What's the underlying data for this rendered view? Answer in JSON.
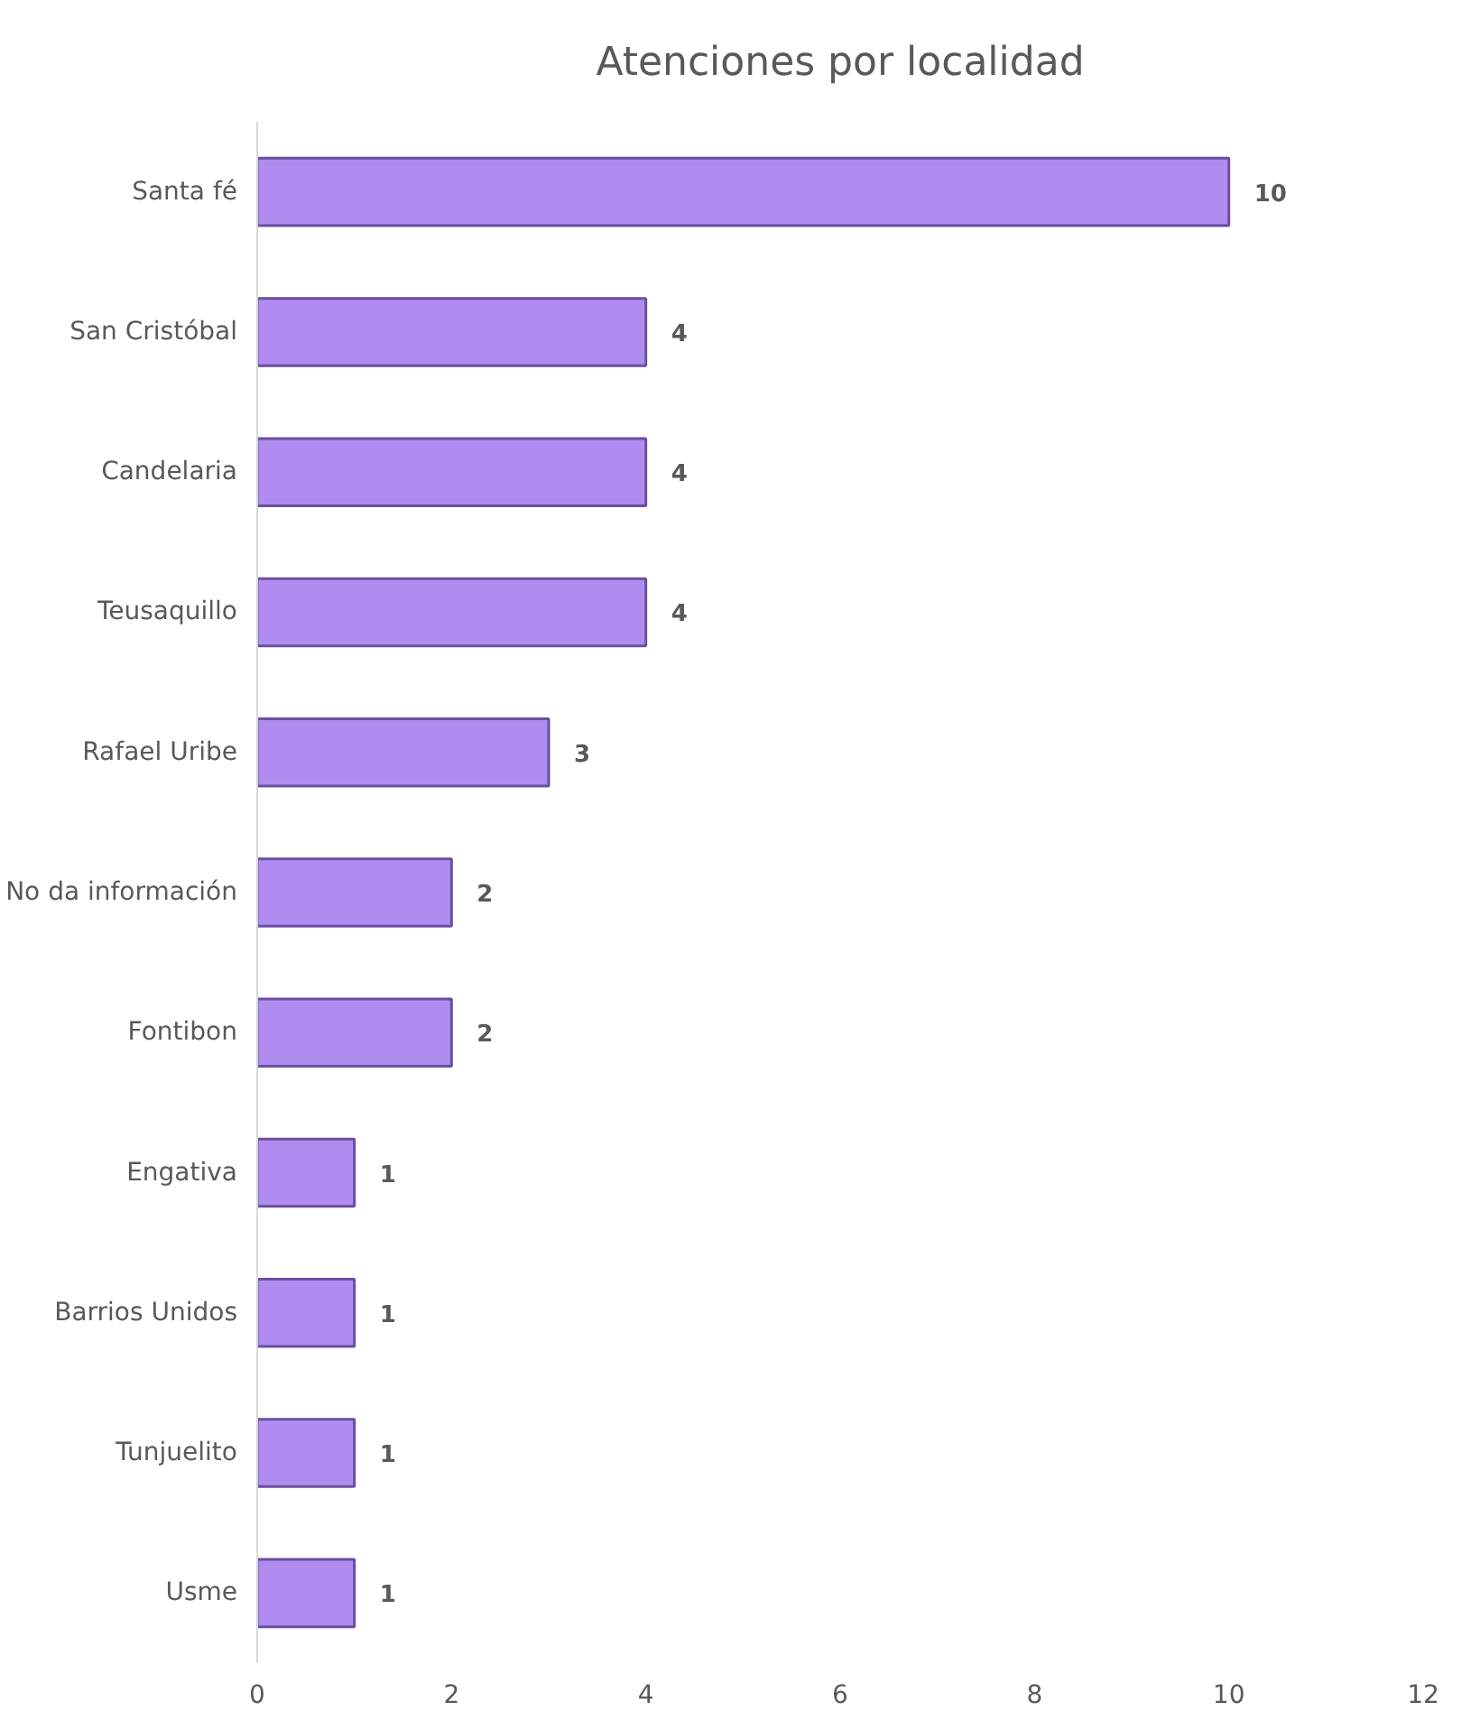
{
  "chart_data": {
    "type": "bar",
    "orientation": "horizontal",
    "title": "Atenciones por localidad",
    "categories": [
      "Santa fé",
      "San Cristóbal",
      "Candelaria",
      "Teusaquillo",
      "Rafael Uribe",
      "No da información",
      "Fontibon",
      "Engativa",
      "Barrios Unidos",
      "Tunjuelito",
      "Usme"
    ],
    "values": [
      10,
      4,
      4,
      4,
      3,
      2,
      2,
      1,
      1,
      1,
      1
    ],
    "color": "#b08cf0",
    "xlim": [
      0,
      12
    ],
    "xticks": [
      0,
      2,
      4,
      6,
      8,
      10,
      12
    ],
    "data_labels": true,
    "grid": false
  }
}
